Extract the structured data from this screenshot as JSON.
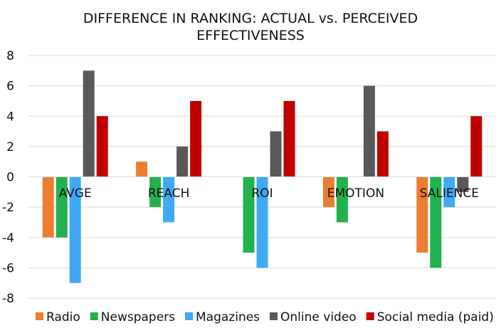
{
  "chart_data": {
    "type": "bar",
    "title_lines": [
      "DIFFERENCE IN RANKING: ACTUAL vs. PERCEIVED",
      "EFFECTIVENESS"
    ],
    "categories": [
      "AVGE",
      "REACH",
      "ROI",
      "EMOTION",
      "SALIENCE"
    ],
    "series": [
      {
        "name": "Radio",
        "color": "#ED7D31",
        "values": [
          -4,
          1,
          0,
          -2,
          -5
        ]
      },
      {
        "name": "Newspapers",
        "color": "#22B14C",
        "values": [
          -4,
          -2,
          -5,
          -3,
          -6
        ]
      },
      {
        "name": "Magazines",
        "color": "#3FA9F5",
        "values": [
          -7,
          -3,
          -6,
          0,
          -2
        ]
      },
      {
        "name": "Online video",
        "color": "#595959",
        "values": [
          7,
          2,
          3,
          6,
          -1
        ]
      },
      {
        "name": "Social media (paid)",
        "color": "#C00000",
        "values": [
          4,
          5,
          5,
          3,
          4
        ]
      }
    ],
    "ylim": [
      -8,
      8
    ],
    "yticks": [
      -8,
      -6,
      -4,
      -2,
      0,
      2,
      4,
      6,
      8
    ],
    "grid": true,
    "legend_position": "bottom"
  }
}
